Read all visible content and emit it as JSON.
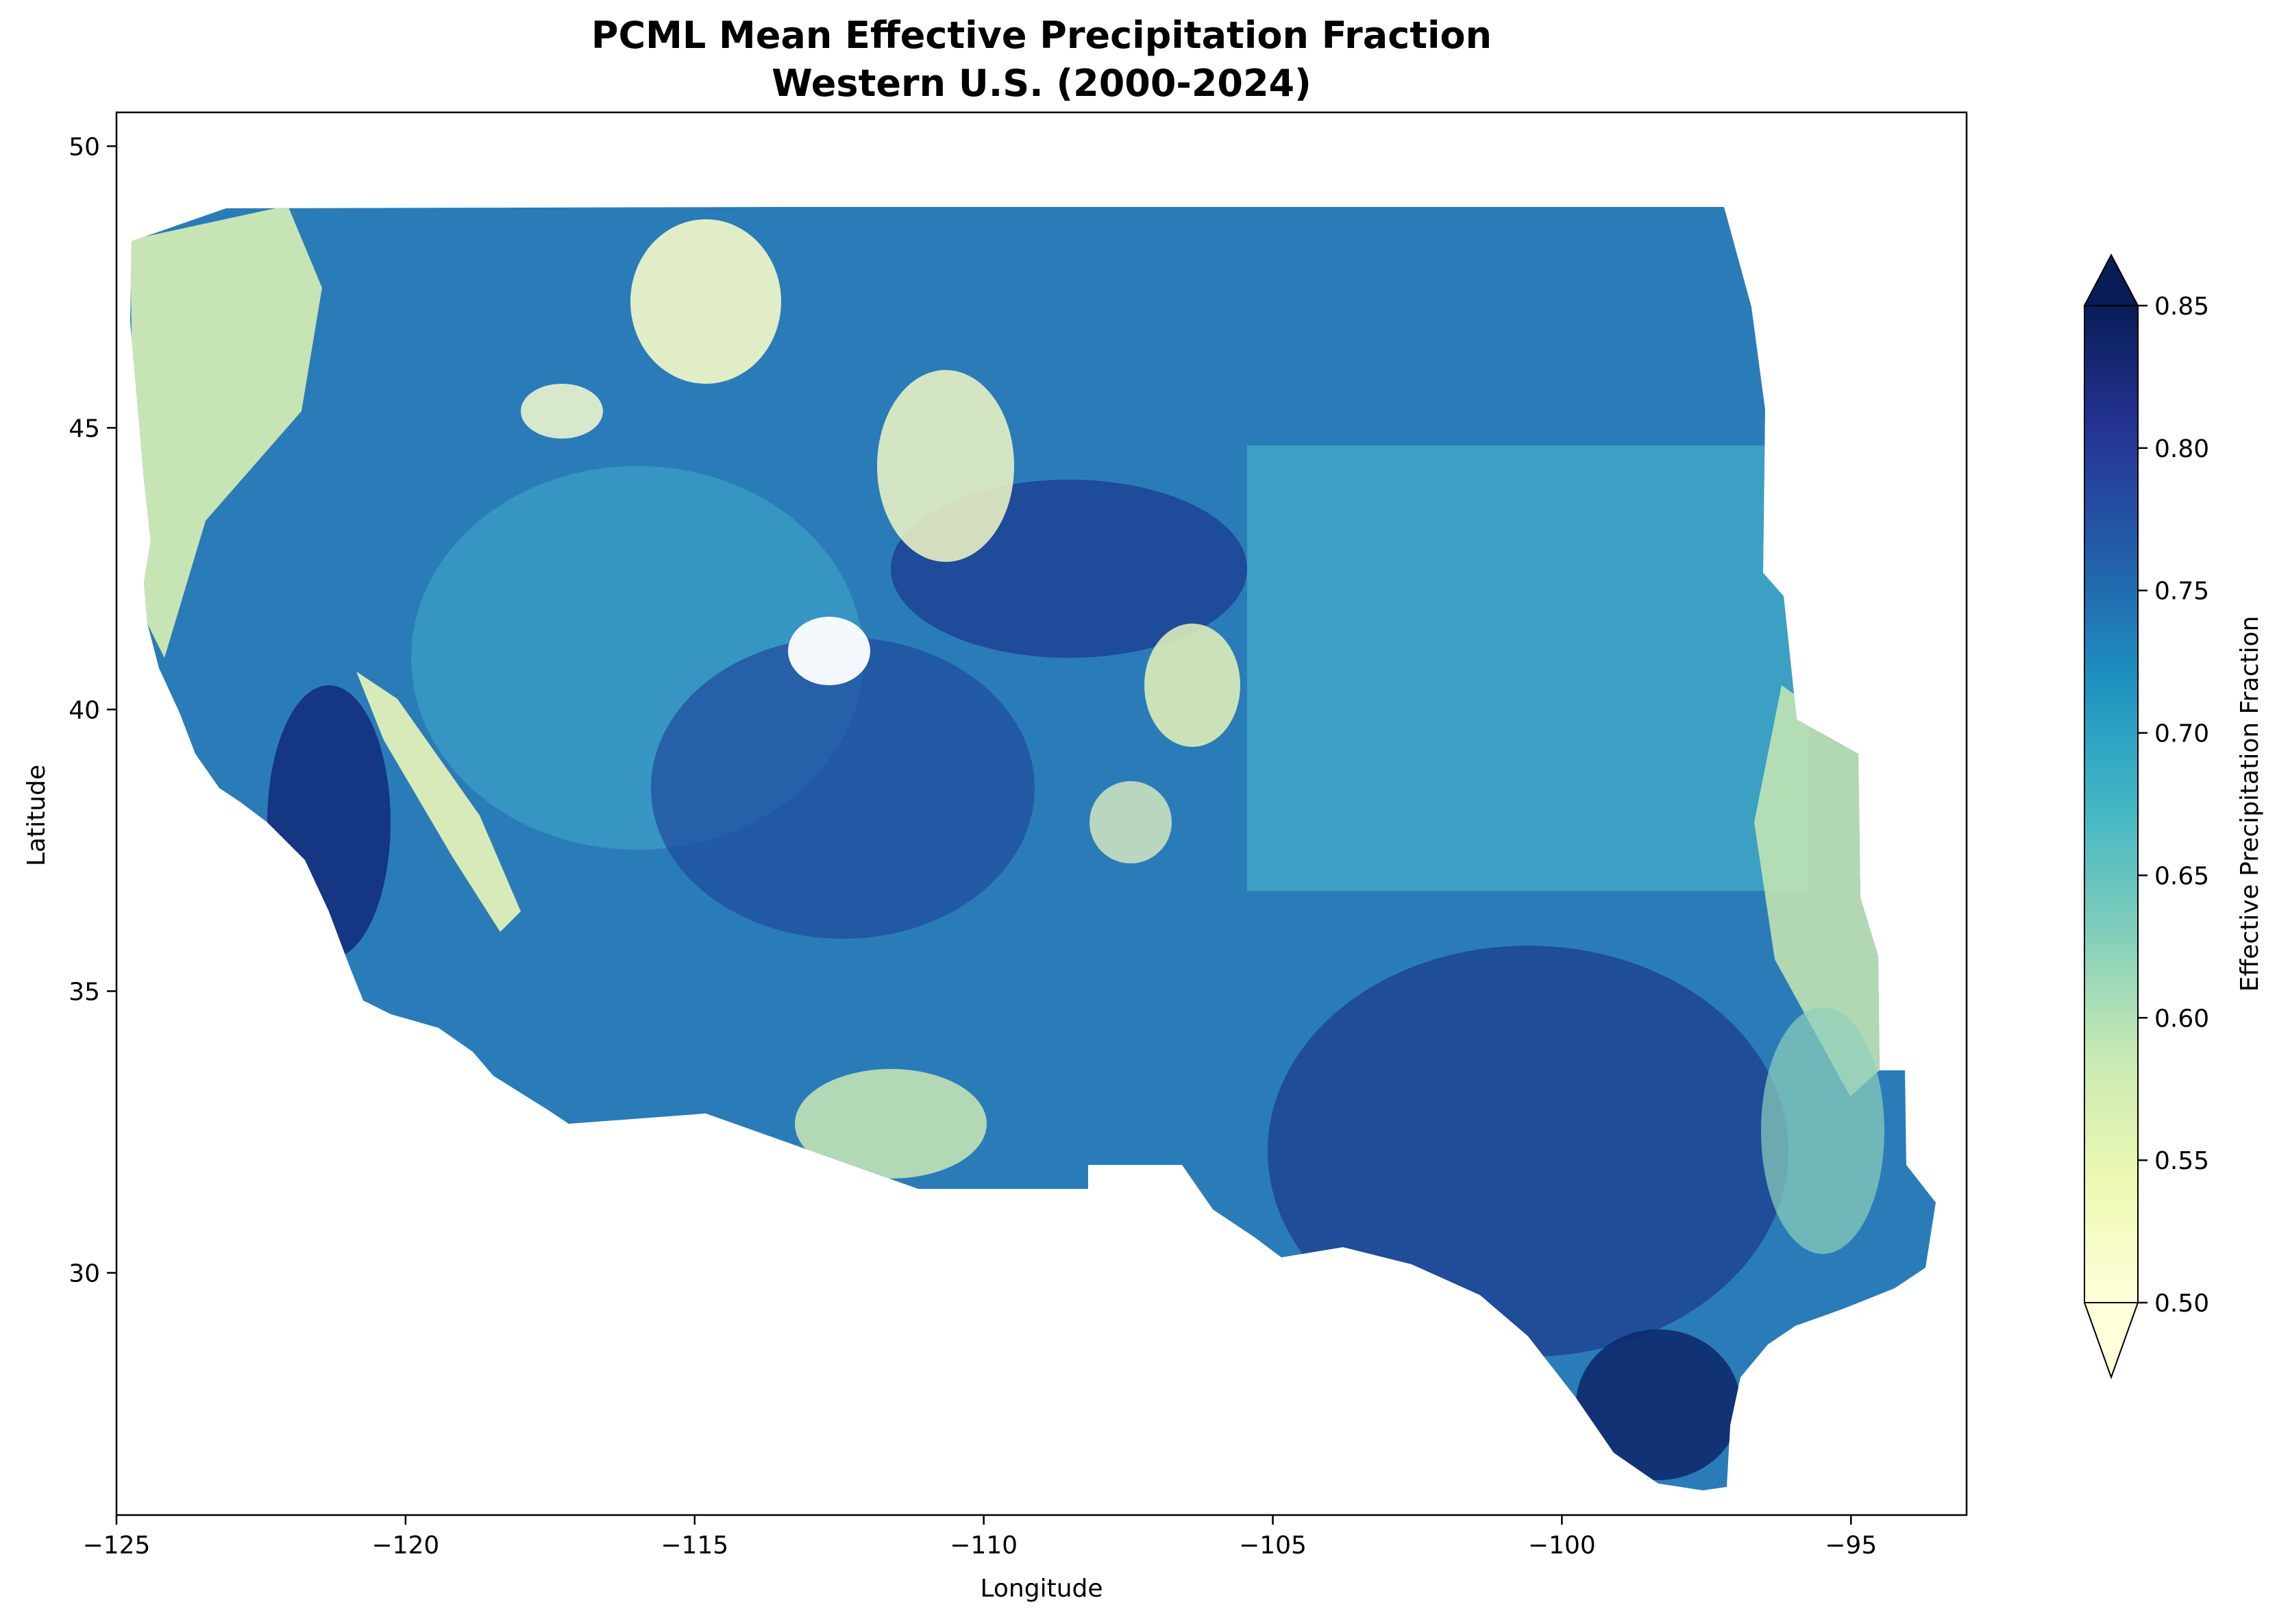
{
  "figure": {
    "title_line1": "PCML Mean Effective Precipitation Fraction",
    "title_line2": "Western U.S. (2000-2024)"
  },
  "chart_data": {
    "type": "heatmap",
    "title": "PCML Mean Effective Precipitation Fraction\nWestern U.S. (2000-2024)",
    "xlabel": "Longitude",
    "ylabel": "Latitude",
    "xlim": [
      -125,
      -93
    ],
    "ylim": [
      25.7,
      50.6
    ],
    "x_ticks": [
      -125,
      -120,
      -115,
      -110,
      -105,
      -100,
      -95
    ],
    "x_tick_labels": [
      "−125",
      "−120",
      "−115",
      "−110",
      "−105",
      "−100",
      "−95"
    ],
    "y_ticks": [
      30,
      35,
      40,
      45,
      50
    ],
    "y_tick_labels": [
      "30",
      "35",
      "40",
      "45",
      "50"
    ],
    "colormap": "YlGnBu",
    "colorbar": {
      "label": "Effective Precipitation Fraction",
      "min": 0.5,
      "max": 0.85,
      "extend": "both",
      "ticks": [
        0.5,
        0.55,
        0.6,
        0.65,
        0.7,
        0.75,
        0.8,
        0.85
      ],
      "tick_labels": [
        "0.50",
        "0.55",
        "0.60",
        "0.65",
        "0.70",
        "0.75",
        "0.80",
        "0.85"
      ],
      "colors": [
        "#ffffd9",
        "#edf8b1",
        "#c7e9b4",
        "#7fcdbb",
        "#41b6c4",
        "#1d91c0",
        "#225ea8",
        "#253494",
        "#081d58"
      ]
    },
    "grid": false
  }
}
